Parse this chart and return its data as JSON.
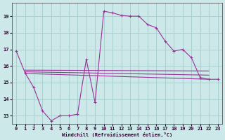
{
  "xlabel": "Windchill (Refroidissement éolien,°C)",
  "bg_color": "#cce8e8",
  "grid_color": "#aad0d0",
  "line_color": "#993399",
  "xlim": [
    -0.5,
    23.5
  ],
  "ylim": [
    12.5,
    19.8
  ],
  "yticks": [
    13,
    14,
    15,
    16,
    17,
    18,
    19
  ],
  "xticks": [
    0,
    1,
    2,
    3,
    4,
    5,
    6,
    7,
    8,
    9,
    10,
    11,
    12,
    13,
    14,
    15,
    16,
    17,
    18,
    19,
    20,
    21,
    22,
    23
  ],
  "line1_x": [
    0,
    1,
    2,
    3,
    4,
    5,
    6,
    7,
    8,
    9,
    10,
    11,
    12,
    13,
    14,
    15,
    16,
    17,
    18,
    19,
    20,
    21,
    22,
    23
  ],
  "line1_y": [
    16.9,
    15.6,
    14.7,
    13.3,
    12.7,
    13.0,
    13.0,
    13.1,
    16.4,
    13.8,
    19.3,
    19.2,
    19.05,
    19.0,
    19.0,
    18.5,
    18.3,
    17.5,
    16.9,
    17.0,
    16.5,
    15.3,
    15.2,
    15.2
  ],
  "line2_x": [
    1,
    22
  ],
  "line2_y": [
    15.55,
    15.2
  ],
  "line3_x": [
    1,
    22
  ],
  "line3_y": [
    15.65,
    15.45
  ],
  "line4_x": [
    1,
    22
  ],
  "line4_y": [
    15.75,
    15.7
  ]
}
